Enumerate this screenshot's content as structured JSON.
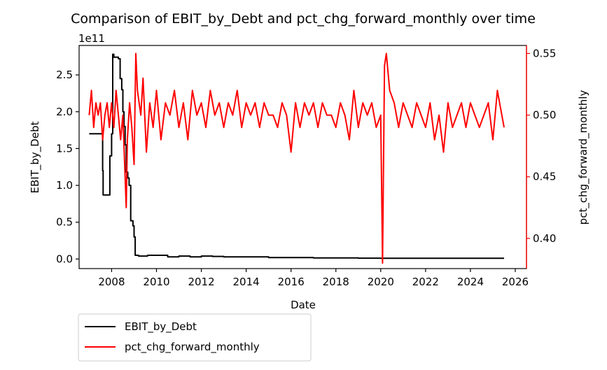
{
  "chart_data": {
    "type": "line",
    "title": "Comparison of EBIT_by_Debt and pct_chg_forward_monthly over time",
    "xlabel": "Date",
    "ylabel_left": "EBIT_by_Debt",
    "ylabel_right": "pct_chg_forward_monthly",
    "left_offset_text": "1e11",
    "x_tick_labels": [
      "2008",
      "2010",
      "2012",
      "2014",
      "2016",
      "2018",
      "2020",
      "2022",
      "2024",
      "2026"
    ],
    "xlim": [
      2006.55,
      2026.5
    ],
    "ylim_left": [
      -13000000000.0,
      290000000000.0
    ],
    "left_tick_values": [
      0,
      50000000000.0,
      100000000000.0,
      150000000000.0,
      200000000000.0,
      250000000000.0
    ],
    "left_tick_labels": [
      "0.0",
      "0.5",
      "1.0",
      "1.5",
      "2.0",
      "2.5"
    ],
    "ylim_right": [
      0.3755,
      0.5565
    ],
    "right_tick_values": [
      0.4,
      0.45,
      0.5,
      0.55
    ],
    "right_tick_labels": [
      "0.40",
      "0.45",
      "0.50",
      "0.55"
    ],
    "grid": false,
    "legend_placement": "below-left",
    "colors": {
      "EBIT_by_Debt": "#000000",
      "pct_chg_forward_monthly": "#ff0000",
      "right_axis": "#ff0000"
    },
    "series": [
      {
        "name": "EBIT_by_Debt",
        "axis": "left",
        "x": [
          2007.0,
          2007.5,
          2007.6,
          2007.62,
          2007.9,
          2007.92,
          2008.0,
          2008.05,
          2008.1,
          2008.3,
          2008.38,
          2008.45,
          2008.5,
          2008.55,
          2008.6,
          2008.65,
          2008.72,
          2008.78,
          2008.85,
          2008.95,
          2009.0,
          2009.05,
          2009.2,
          2009.6,
          2010.0,
          2010.5,
          2011.0,
          2011.5,
          2012.0,
          2012.5,
          2013.0,
          2014.0,
          2015.0,
          2016.0,
          2017.0,
          2018.0,
          2019.0,
          2020.0,
          2021.0,
          2022.0,
          2023.0,
          2024.0,
          2025.5
        ],
        "y": [
          170000000000.0,
          170000000000.0,
          120000000000.0,
          87000000000.0,
          87000000000.0,
          140000000000.0,
          170000000000.0,
          278000000000.0,
          274000000000.0,
          272000000000.0,
          245000000000.0,
          230000000000.0,
          200000000000.0,
          180000000000.0,
          155000000000.0,
          118000000000.0,
          110000000000.0,
          100000000000.0,
          52000000000.0,
          45000000000.0,
          30000000000.0,
          5000000000.0,
          4000000000.0,
          5000000000.0,
          5000000000.0,
          3000000000.0,
          4000000000.0,
          3000000000.0,
          4000000000.0,
          3500000000.0,
          3000000000.0,
          3000000000.0,
          2000000000.0,
          2000000000.0,
          1500000000.0,
          1500000000.0,
          1200000000.0,
          1000000000.0,
          1000000000.0,
          1000000000.0,
          1000000000.0,
          1000000000.0,
          1000000000.0
        ]
      },
      {
        "name": "pct_chg_forward_monthly",
        "axis": "right",
        "x": [
          2007.0,
          2007.1,
          2007.2,
          2007.3,
          2007.4,
          2007.5,
          2007.6,
          2007.7,
          2007.8,
          2007.9,
          2008.0,
          2008.1,
          2008.2,
          2008.3,
          2008.4,
          2008.5,
          2008.6,
          2008.65,
          2008.7,
          2008.8,
          2008.9,
          2009.0,
          2009.08,
          2009.15,
          2009.3,
          2009.4,
          2009.55,
          2009.7,
          2009.85,
          2010.0,
          2010.2,
          2010.4,
          2010.6,
          2010.8,
          2011.0,
          2011.2,
          2011.4,
          2011.6,
          2011.8,
          2012.0,
          2012.2,
          2012.4,
          2012.6,
          2012.8,
          2013.0,
          2013.2,
          2013.4,
          2013.6,
          2013.8,
          2014.0,
          2014.2,
          2014.4,
          2014.6,
          2014.8,
          2015.0,
          2015.2,
          2015.4,
          2015.6,
          2015.8,
          2016.0,
          2016.2,
          2016.4,
          2016.6,
          2016.8,
          2017.0,
          2017.2,
          2017.4,
          2017.6,
          2017.8,
          2018.0,
          2018.2,
          2018.4,
          2018.6,
          2018.8,
          2019.0,
          2019.2,
          2019.4,
          2019.6,
          2019.8,
          2020.0,
          2020.08,
          2020.17,
          2020.25,
          2020.4,
          2020.6,
          2020.8,
          2021.0,
          2021.2,
          2021.4,
          2021.6,
          2021.8,
          2022.0,
          2022.2,
          2022.4,
          2022.6,
          2022.8,
          2023.0,
          2023.2,
          2023.4,
          2023.6,
          2023.8,
          2024.0,
          2024.2,
          2024.4,
          2024.6,
          2024.8,
          2025.0,
          2025.2,
          2025.3,
          2025.4,
          2025.5
        ],
        "y": [
          0.5,
          0.52,
          0.49,
          0.51,
          0.5,
          0.51,
          0.48,
          0.5,
          0.51,
          0.49,
          0.51,
          0.49,
          0.52,
          0.5,
          0.48,
          0.5,
          0.45,
          0.425,
          0.48,
          0.51,
          0.49,
          0.46,
          0.55,
          0.52,
          0.5,
          0.53,
          0.47,
          0.51,
          0.49,
          0.52,
          0.48,
          0.51,
          0.5,
          0.52,
          0.49,
          0.51,
          0.48,
          0.52,
          0.5,
          0.51,
          0.49,
          0.52,
          0.5,
          0.51,
          0.49,
          0.51,
          0.5,
          0.52,
          0.49,
          0.51,
          0.5,
          0.51,
          0.49,
          0.51,
          0.5,
          0.5,
          0.49,
          0.51,
          0.5,
          0.47,
          0.51,
          0.49,
          0.51,
          0.5,
          0.51,
          0.49,
          0.51,
          0.5,
          0.5,
          0.49,
          0.51,
          0.5,
          0.48,
          0.52,
          0.49,
          0.51,
          0.5,
          0.51,
          0.49,
          0.5,
          0.38,
          0.54,
          0.55,
          0.52,
          0.51,
          0.49,
          0.51,
          0.5,
          0.49,
          0.51,
          0.5,
          0.49,
          0.51,
          0.48,
          0.5,
          0.47,
          0.51,
          0.49,
          0.5,
          0.51,
          0.49,
          0.51,
          0.5,
          0.49,
          0.5,
          0.51,
          0.48,
          0.52,
          0.51,
          0.5,
          0.49
        ]
      }
    ]
  }
}
